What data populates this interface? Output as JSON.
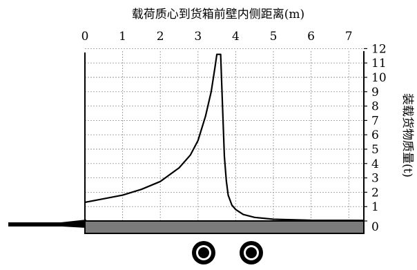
{
  "chart_data": {
    "type": "line",
    "title": "载荷质心到货箱前壁内侧距离(m)",
    "xlabel": "载荷质心到货箱前壁内侧距离(m)",
    "ylabel": "装载货物质量(t)",
    "x_ticks": [
      0,
      1,
      2,
      3,
      4,
      5,
      6,
      7
    ],
    "y_ticks": [
      0,
      1,
      2,
      3,
      4,
      5,
      6,
      7,
      8,
      9,
      10,
      11,
      12
    ],
    "xlim": [
      0,
      7.4
    ],
    "ylim": [
      0,
      12
    ],
    "x_axis_position": "top",
    "y_axis_position": "right",
    "grid": true,
    "series": [
      {
        "x": [
          0,
          0.5,
          1.0,
          1.5,
          2.0,
          2.5,
          2.8,
          3.0,
          3.2,
          3.35,
          3.45,
          3.5,
          3.55,
          3.6,
          3.65,
          3.7,
          3.75,
          3.8,
          3.9,
          4.0,
          4.2,
          4.5,
          5.0,
          6.0,
          7.4
        ],
        "values": [
          1.3,
          1.55,
          1.8,
          2.2,
          2.75,
          3.7,
          4.6,
          5.6,
          7.3,
          9.0,
          10.7,
          11.6,
          11.6,
          11.6,
          8.0,
          4.5,
          2.8,
          1.8,
          1.1,
          0.8,
          0.45,
          0.25,
          0.12,
          0.05,
          0.04
        ]
      }
    ]
  },
  "icons": {
    "trailer": "semi-trailer-silhouette",
    "wheels": "wheel-icon"
  },
  "colors": {
    "deck_fill": "#7b7b7b",
    "axis": "#000000",
    "grid": "#9a9a9a"
  }
}
